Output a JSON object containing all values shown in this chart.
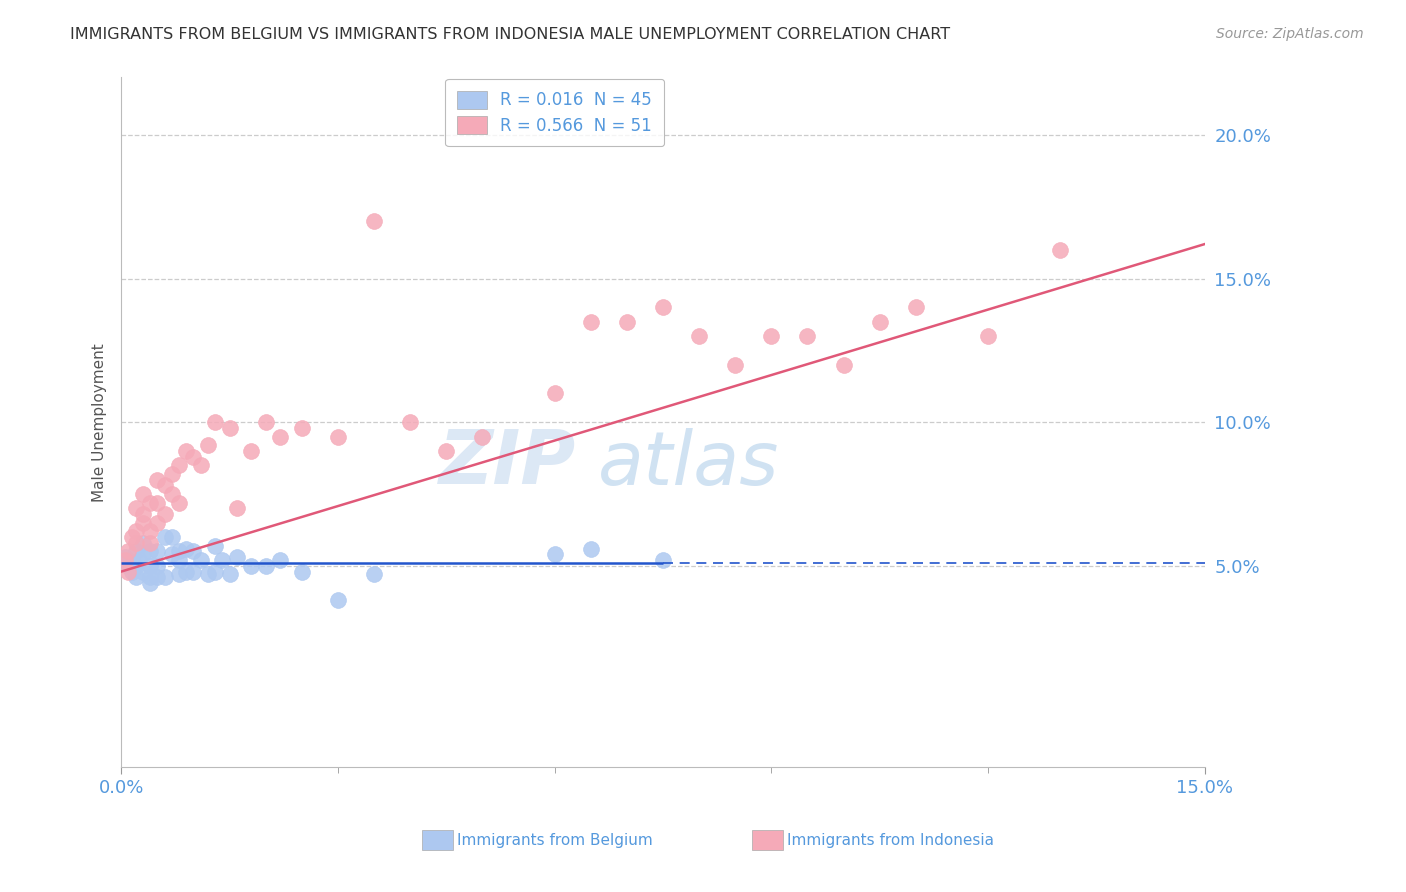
{
  "title": "IMMIGRANTS FROM BELGIUM VS IMMIGRANTS FROM INDONESIA MALE UNEMPLOYMENT CORRELATION CHART",
  "source": "Source: ZipAtlas.com",
  "ylabel": "Male Unemployment",
  "watermark_zip": "ZIP",
  "watermark_atlas": "atlas",
  "xlim": [
    0.0,
    0.15
  ],
  "ylim": [
    -0.02,
    0.22
  ],
  "yticks": [
    0.05,
    0.1,
    0.15,
    0.2
  ],
  "ytick_labels": [
    "5.0%",
    "10.0%",
    "15.0%",
    "20.0%"
  ],
  "legend_belgium": "R = 0.016  N = 45",
  "legend_indonesia": "R = 0.566  N = 51",
  "belgium_color": "#adc8f0",
  "indonesia_color": "#f5aab8",
  "belgium_line_color": "#2255cc",
  "indonesia_line_color": "#e05878",
  "title_color": "#333333",
  "tick_color": "#5599dd",
  "grid_color": "#cccccc",
  "background_color": "#ffffff",
  "belgium_x": [
    0.0005,
    0.001,
    0.001,
    0.0015,
    0.002,
    0.002,
    0.002,
    0.0025,
    0.003,
    0.003,
    0.003,
    0.004,
    0.004,
    0.004,
    0.004,
    0.005,
    0.005,
    0.005,
    0.006,
    0.006,
    0.007,
    0.007,
    0.008,
    0.008,
    0.008,
    0.009,
    0.009,
    0.01,
    0.01,
    0.011,
    0.012,
    0.013,
    0.013,
    0.014,
    0.015,
    0.016,
    0.018,
    0.02,
    0.022,
    0.025,
    0.03,
    0.035,
    0.06,
    0.065,
    0.075
  ],
  "belgium_y": [
    0.053,
    0.05,
    0.052,
    0.048,
    0.055,
    0.05,
    0.046,
    0.052,
    0.058,
    0.054,
    0.048,
    0.055,
    0.05,
    0.046,
    0.044,
    0.055,
    0.05,
    0.046,
    0.06,
    0.046,
    0.06,
    0.054,
    0.055,
    0.052,
    0.047,
    0.056,
    0.048,
    0.055,
    0.048,
    0.052,
    0.047,
    0.057,
    0.048,
    0.052,
    0.047,
    0.053,
    0.05,
    0.05,
    0.052,
    0.048,
    0.038,
    0.047,
    0.054,
    0.056,
    0.052
  ],
  "indonesia_x": [
    0.0005,
    0.001,
    0.001,
    0.0015,
    0.002,
    0.002,
    0.002,
    0.003,
    0.003,
    0.003,
    0.004,
    0.004,
    0.004,
    0.005,
    0.005,
    0.005,
    0.006,
    0.006,
    0.007,
    0.007,
    0.008,
    0.008,
    0.009,
    0.01,
    0.011,
    0.012,
    0.013,
    0.015,
    0.016,
    0.018,
    0.02,
    0.022,
    0.025,
    0.03,
    0.035,
    0.04,
    0.045,
    0.05,
    0.06,
    0.065,
    0.07,
    0.075,
    0.08,
    0.085,
    0.09,
    0.095,
    0.1,
    0.105,
    0.11,
    0.12,
    0.13
  ],
  "indonesia_y": [
    0.052,
    0.055,
    0.048,
    0.06,
    0.062,
    0.07,
    0.058,
    0.065,
    0.075,
    0.068,
    0.072,
    0.062,
    0.058,
    0.08,
    0.072,
    0.065,
    0.078,
    0.068,
    0.082,
    0.075,
    0.085,
    0.072,
    0.09,
    0.088,
    0.085,
    0.092,
    0.1,
    0.098,
    0.07,
    0.09,
    0.1,
    0.095,
    0.098,
    0.095,
    0.17,
    0.1,
    0.09,
    0.095,
    0.11,
    0.135,
    0.135,
    0.14,
    0.13,
    0.12,
    0.13,
    0.13,
    0.12,
    0.135,
    0.14,
    0.13,
    0.16
  ],
  "belgium_trend_x": [
    0.0,
    0.075
  ],
  "belgium_trend_y": [
    0.051,
    0.051
  ],
  "indonesia_trend_x": [
    0.0,
    0.15
  ],
  "indonesia_trend_y": [
    0.048,
    0.162
  ]
}
